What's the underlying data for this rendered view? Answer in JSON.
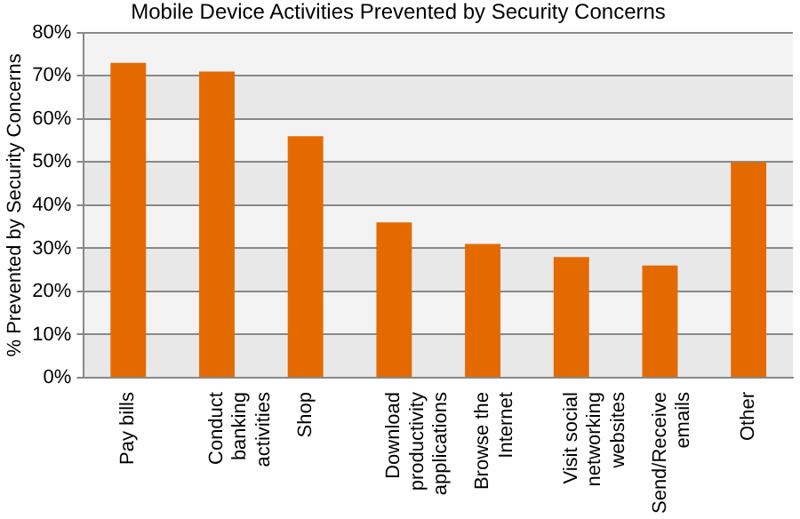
{
  "chart_data": {
    "type": "bar",
    "title": "Mobile Device Activities Prevented by Security Concerns",
    "ylabel": "% Prevented by Security Concerns",
    "categories": [
      "Pay bills",
      "Conduct\nbanking\nactivities",
      "Shop",
      "Download\nproductivity\napplications",
      "Browse the\nInternet",
      "Visit social\nnetworking\nwebsites",
      "Send/Receive\nemails",
      "Other"
    ],
    "values": [
      73,
      71,
      56,
      36,
      31,
      28,
      26,
      50
    ],
    "color": "#e46a00",
    "ylim": [
      0,
      80
    ],
    "yticks": [
      {
        "value": 0,
        "label": "0%"
      },
      {
        "value": 10,
        "label": "10%"
      },
      {
        "value": 20,
        "label": "20%"
      },
      {
        "value": 30,
        "label": "30%"
      },
      {
        "value": 40,
        "label": "40%"
      },
      {
        "value": 50,
        "label": "50%"
      },
      {
        "value": 60,
        "label": "60%"
      },
      {
        "value": 70,
        "label": "70%"
      },
      {
        "value": 80,
        "label": "80%"
      }
    ],
    "grid": "y",
    "legend": false
  }
}
